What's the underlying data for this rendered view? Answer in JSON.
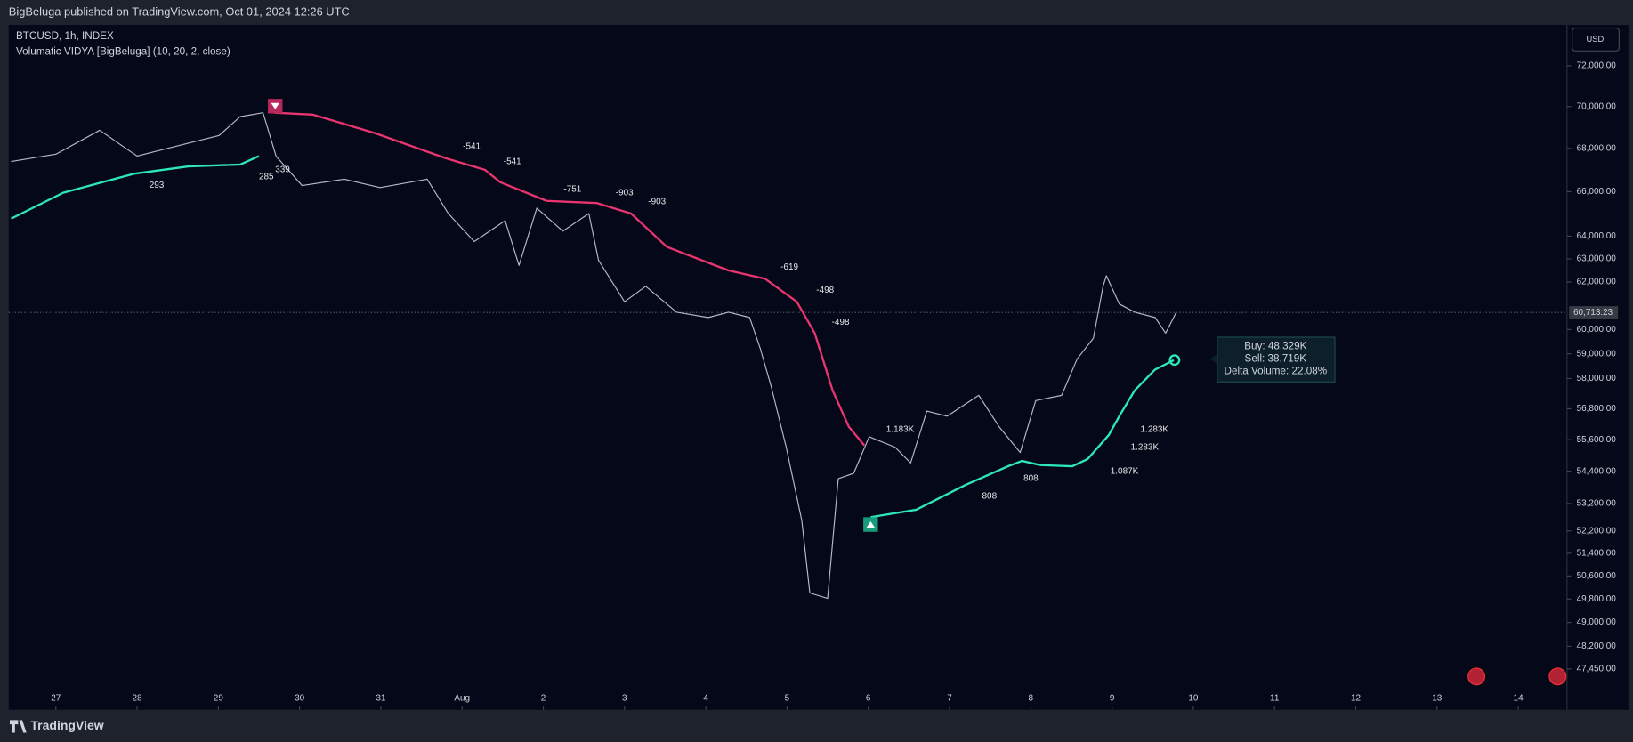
{
  "page": {
    "published": "BigBeluga published on TradingView.com, Oct 01, 2024 12:26 UTC",
    "brand": "TradingView",
    "currency": "USD"
  },
  "chart_data": {
    "type": "line",
    "title": "BTCUSD, 1h, INDEX",
    "subtitle": "Volumatic VIDYA [BigBeluga] (10, 20, 2, close)",
    "log_scale": true,
    "grid": false,
    "xlim": [
      -0.58,
      18.6
    ],
    "xticks": [
      {
        "value": 0,
        "label": "27"
      },
      {
        "value": 1,
        "label": "28"
      },
      {
        "value": 2,
        "label": "29"
      },
      {
        "value": 3,
        "label": "30"
      },
      {
        "value": 4,
        "label": "31"
      },
      {
        "value": 5,
        "label": "Aug"
      },
      {
        "value": 6,
        "label": "2"
      },
      {
        "value": 7,
        "label": "3"
      },
      {
        "value": 8,
        "label": "4"
      },
      {
        "value": 9,
        "label": "5"
      },
      {
        "value": 10,
        "label": "6"
      },
      {
        "value": 11,
        "label": "7"
      },
      {
        "value": 12,
        "label": "8"
      },
      {
        "value": 13,
        "label": "9"
      },
      {
        "value": 14,
        "label": "10"
      },
      {
        "value": 15,
        "label": "11"
      },
      {
        "value": 16,
        "label": "12"
      },
      {
        "value": 17,
        "label": "13"
      },
      {
        "value": 18,
        "label": "14"
      }
    ],
    "ylim": [
      46130,
      74060
    ],
    "yticks": [
      {
        "value": 72000,
        "label": "72,000.00"
      },
      {
        "value": 70000,
        "label": "70,000.00"
      },
      {
        "value": 68000,
        "label": "68,000.00"
      },
      {
        "value": 66000,
        "label": "66,000.00"
      },
      {
        "value": 64000,
        "label": "64,000.00"
      },
      {
        "value": 63000,
        "label": "63,000.00"
      },
      {
        "value": 62000,
        "label": "62,000.00"
      },
      {
        "value": 60000,
        "label": "60,000.00"
      },
      {
        "value": 59000,
        "label": "59,000.00"
      },
      {
        "value": 58000,
        "label": "58,000.00"
      },
      {
        "value": 56800,
        "label": "56,800.00"
      },
      {
        "value": 55600,
        "label": "55,600.00"
      },
      {
        "value": 54400,
        "label": "54,400.00"
      },
      {
        "value": 53200,
        "label": "53,200.00"
      },
      {
        "value": 52200,
        "label": "52,200.00"
      },
      {
        "value": 51400,
        "label": "51,400.00"
      },
      {
        "value": 50600,
        "label": "50,600.00"
      },
      {
        "value": 49800,
        "label": "49,800.00"
      },
      {
        "value": 49000,
        "label": "49,000.00"
      },
      {
        "value": 48200,
        "label": "48,200.00"
      },
      {
        "value": 47450,
        "label": "47,450.00"
      }
    ],
    "last_price": {
      "value": 60713.23,
      "label": "60,713.23"
    },
    "series": [
      {
        "color": "#b5b9c2",
        "x": [
          -0.55,
          0,
          0.54,
          1.0,
          1.5,
          2.01,
          2.27,
          2.55,
          2.71,
          3.03,
          3.55,
          3.99,
          4.57,
          4.83,
          5.15,
          5.53,
          5.7,
          5.92,
          6.24,
          6.56,
          6.68,
          7.0,
          7.26,
          7.64,
          8.03,
          8.28,
          8.54,
          8.67,
          8.8,
          8.99,
          9.18,
          9.28,
          9.5,
          9.63,
          9.82,
          10.01,
          10.33,
          10.52,
          10.72,
          10.97,
          11.36,
          11.61,
          11.87,
          12.06,
          12.38,
          12.57,
          12.77,
          12.89,
          12.93,
          13.09,
          13.28,
          13.53,
          13.66,
          13.79
        ],
        "values": [
          67390,
          67730,
          68860,
          67640,
          68120,
          68610,
          69510,
          69700,
          67640,
          66280,
          66570,
          66190,
          66570,
          65010,
          63760,
          64690,
          62720,
          65250,
          64220,
          65010,
          62940,
          61160,
          61820,
          60720,
          60500,
          60720,
          60500,
          59210,
          57740,
          55310,
          52590,
          50010,
          49820,
          54120,
          54320,
          55710,
          55310,
          54710,
          56710,
          56510,
          57330,
          56100,
          55110,
          57120,
          57330,
          58790,
          59640,
          61820,
          62270,
          61070,
          60720,
          60500,
          59850,
          60713.23
        ]
      },
      {
        "color": "#2ee6b6",
        "x": [
          -0.55,
          0.09,
          0.96,
          1.63,
          2.27,
          2.5
        ],
        "values": [
          64780,
          65950,
          66820,
          67160,
          67250,
          67640
        ]
      },
      {
        "color": "#e8356f",
        "x": [
          2.69,
          3.16,
          3.93,
          4.8,
          5.28,
          5.47,
          6.04,
          6.66,
          7.08,
          7.52,
          8.28,
          8.73,
          9.12,
          9.34,
          9.56,
          9.76,
          9.95
        ],
        "values": [
          69700,
          69610,
          68720,
          67540,
          67000,
          66430,
          65580,
          65480,
          65010,
          63530,
          62500,
          62140,
          61160,
          59850,
          57530,
          56100,
          55380
        ]
      },
      {
        "color": "#2ee6b6",
        "x": [
          10.03,
          10.59,
          11.2,
          11.72,
          11.89,
          12.12,
          12.51,
          12.7,
          12.96,
          13.09,
          13.28,
          13.53,
          13.76
        ],
        "values": [
          52700,
          52970,
          53890,
          54590,
          54790,
          54630,
          54590,
          54860,
          55780,
          56510,
          57530,
          58360,
          58740
        ]
      }
    ],
    "annotations": [
      {
        "text": "293",
        "x": 1.15,
        "y": 66280
      },
      {
        "text": "285",
        "x": 2.5,
        "y": 66670
      },
      {
        "text": "339",
        "x": 2.7,
        "y": 67000
      },
      {
        "text": "-541",
        "x": 5.01,
        "y": 68080
      },
      {
        "text": "-541",
        "x": 5.51,
        "y": 67380
      },
      {
        "text": "-751",
        "x": 6.25,
        "y": 66100
      },
      {
        "text": "-903",
        "x": 6.89,
        "y": 65950
      },
      {
        "text": "-903",
        "x": 7.29,
        "y": 65530
      },
      {
        "text": "-619",
        "x": 8.92,
        "y": 62630
      },
      {
        "text": "-498",
        "x": 9.36,
        "y": 61650
      },
      {
        "text": "-498",
        "x": 9.55,
        "y": 60290
      },
      {
        "text": "1.183K",
        "x": 10.22,
        "y": 55980
      },
      {
        "text": "808",
        "x": 11.4,
        "y": 53470
      },
      {
        "text": "808",
        "x": 11.91,
        "y": 54120
      },
      {
        "text": "1.087K",
        "x": 12.98,
        "y": 54390
      },
      {
        "text": "1.283K",
        "x": 13.35,
        "y": 55980
      },
      {
        "text": "1.283K",
        "x": 13.23,
        "y": 55310
      }
    ],
    "tooltip": {
      "buy": "Buy: 48.329K",
      "sell": "Sell: 38.719K",
      "delta": "Delta Volume: 22.08%"
    }
  }
}
